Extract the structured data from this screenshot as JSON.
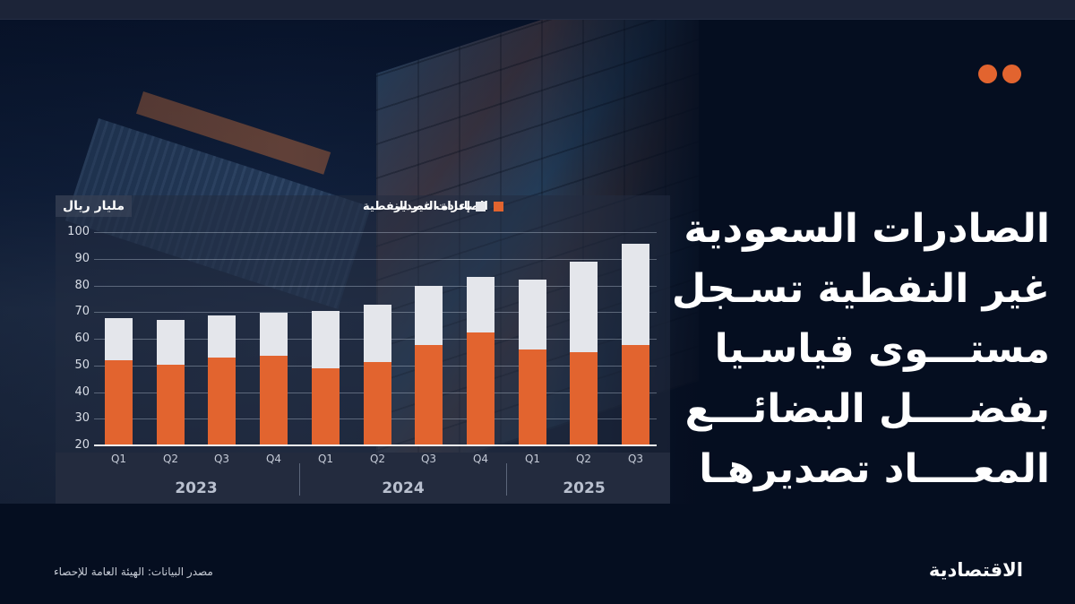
{
  "headline": {
    "lines": [
      "الصادرات السعودية",
      "غير النفطية تسـجل",
      "مستـــوى قياسـيا",
      "بفضــــل البضائـــع",
      "المعــــاد تصديرهـا"
    ]
  },
  "footer": {
    "source": "مصدر البيانات: الهيئة العامة للإحصاء",
    "logo": "الاقتصادية"
  },
  "decor": {
    "dots_color": "#e2642f",
    "dots_count": 2
  },
  "colors": {
    "non_oil_exports": "#e2642f",
    "re_exports": "#e4e6eb",
    "background": "#050e20",
    "panel": "#232b3e"
  },
  "chart_data": {
    "type": "bar",
    "stacked": true,
    "title": "الصادرات السعودية غير النفطية تسجل مستوى قياسيا بفضل البضائع المعاد تصديرها",
    "ylabel": "مليار ريال",
    "xlabel": "",
    "ylim": [
      20,
      100
    ],
    "yticks": [
      20,
      30,
      40,
      50,
      60,
      70,
      80,
      90,
      100
    ],
    "grid": true,
    "legend_position": "top",
    "categories": [
      "Q1",
      "Q2",
      "Q3",
      "Q4",
      "Q1",
      "Q2",
      "Q3",
      "Q4",
      "Q1",
      "Q2",
      "Q3"
    ],
    "years": [
      {
        "label": "2023",
        "quarters": 4
      },
      {
        "label": "2024",
        "quarters": 4
      },
      {
        "label": "2025",
        "quarters": 3
      }
    ],
    "series": [
      {
        "name": "الصادرات غير النفطية",
        "color": "#e2642f",
        "values": [
          52.0,
          50.1,
          52.8,
          53.5,
          48.8,
          51.1,
          57.8,
          62.5,
          55.9,
          54.9,
          57.8
        ]
      },
      {
        "name": "إعادة التصدير",
        "color": "#e4e6eb",
        "values": [
          15.6,
          16.8,
          16.1,
          16.4,
          21.7,
          21.6,
          22.1,
          20.7,
          26.3,
          34.0,
          37.7
        ]
      }
    ],
    "totals": [
      67.6,
      66.9,
      68.9,
      69.9,
      70.5,
      72.7,
      79.9,
      83.2,
      82.2,
      88.9,
      95.5
    ]
  }
}
